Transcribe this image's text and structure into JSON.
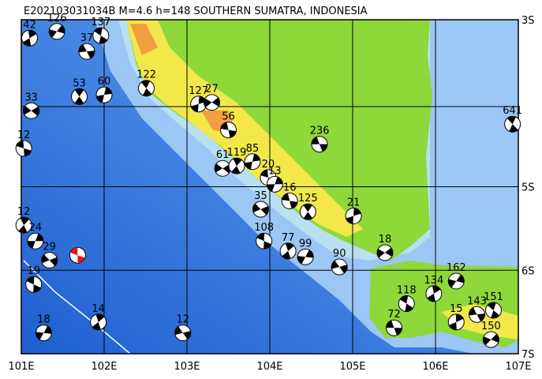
{
  "title": "E202103031034B M=4.6 h=148 SOUTHERN SUMATRA, INDONESIA",
  "xticks": [
    {
      "value": 101,
      "label": "101E"
    },
    {
      "value": 102,
      "label": "102E"
    },
    {
      "value": 103,
      "label": "103E"
    },
    {
      "value": 104,
      "label": "104E"
    },
    {
      "value": 105,
      "label": "105E"
    },
    {
      "value": 106,
      "label": "106E"
    },
    {
      "value": 107,
      "label": "107E"
    }
  ],
  "yticks": [
    {
      "value": -3,
      "label": "3S"
    },
    {
      "value": -5,
      "label": "5S"
    },
    {
      "value": -6,
      "label": "6S"
    },
    {
      "value": -7,
      "label": "7S"
    }
  ],
  "xlim": [
    101,
    107
  ],
  "ylim": [
    -7,
    -3
  ],
  "mainshock": {
    "lon": 101.68,
    "lat": -5.82,
    "color": "#e8101a"
  },
  "events": [
    {
      "lon": 104.6,
      "lat": -4.49,
      "depth": 236
    },
    {
      "lon": 106.93,
      "lat": -4.25,
      "depth": 641
    },
    {
      "lon": 105.01,
      "lat": -5.35,
      "depth": 21
    },
    {
      "lon": 105.39,
      "lat": -5.79,
      "depth": 18
    },
    {
      "lon": 104.24,
      "lat": -5.17,
      "depth": 16
    },
    {
      "lon": 104.46,
      "lat": -5.3,
      "depth": 125
    },
    {
      "lon": 103.79,
      "lat": -4.7,
      "depth": 85
    },
    {
      "lon": 103.43,
      "lat": -4.78,
      "depth": 61
    },
    {
      "lon": 103.98,
      "lat": -4.89,
      "depth": 20
    },
    {
      "lon": 103.6,
      "lat": -4.75,
      "depth": 119
    },
    {
      "lon": 104.06,
      "lat": -4.97,
      "depth": 13
    },
    {
      "lon": 103.89,
      "lat": -5.27,
      "depth": 35
    },
    {
      "lon": 103.93,
      "lat": -5.65,
      "depth": 108
    },
    {
      "lon": 104.22,
      "lat": -5.77,
      "depth": 77
    },
    {
      "lon": 104.43,
      "lat": -5.84,
      "depth": 99
    },
    {
      "lon": 104.84,
      "lat": -5.96,
      "depth": 90
    },
    {
      "lon": 105.65,
      "lat": -6.4,
      "depth": 118
    },
    {
      "lon": 105.98,
      "lat": -6.28,
      "depth": 134
    },
    {
      "lon": 106.25,
      "lat": -6.13,
      "depth": 162
    },
    {
      "lon": 106.5,
      "lat": -6.53,
      "depth": 143
    },
    {
      "lon": 106.7,
      "lat": -6.48,
      "depth": 151
    },
    {
      "lon": 106.25,
      "lat": -6.62,
      "depth": 15
    },
    {
      "lon": 106.67,
      "lat": -6.83,
      "depth": 150
    },
    {
      "lon": 105.5,
      "lat": -6.69,
      "depth": 72
    },
    {
      "lon": 102.51,
      "lat": -3.82,
      "depth": 122
    },
    {
      "lon": 103.14,
      "lat": -4.01,
      "depth": 127
    },
    {
      "lon": 103.3,
      "lat": -3.99,
      "depth": 27
    },
    {
      "lon": 103.5,
      "lat": -4.32,
      "depth": 56
    },
    {
      "lon": 101.7,
      "lat": -3.92,
      "depth": 53
    },
    {
      "lon": 102.0,
      "lat": -3.9,
      "depth": 60
    },
    {
      "lon": 101.12,
      "lat": -4.09,
      "depth": 33
    },
    {
      "lon": 101.03,
      "lat": -4.54,
      "depth": 12
    },
    {
      "lon": 101.03,
      "lat": -5.46,
      "depth": 12
    },
    {
      "lon": 101.17,
      "lat": -5.65,
      "depth": 24
    },
    {
      "lon": 101.34,
      "lat": -5.88,
      "depth": 29
    },
    {
      "lon": 101.15,
      "lat": -6.17,
      "depth": 19
    },
    {
      "lon": 101.93,
      "lat": -6.62,
      "depth": 14
    },
    {
      "lon": 101.27,
      "lat": -6.75,
      "depth": 18
    },
    {
      "lon": 102.95,
      "lat": -6.75,
      "depth": 12
    },
    {
      "lon": 101.96,
      "lat": -3.19,
      "depth": 137
    },
    {
      "lon": 101.1,
      "lat": -3.22,
      "depth": 42
    },
    {
      "lon": 101.43,
      "lat": -3.14,
      "depth": 126
    },
    {
      "lon": 101.79,
      "lat": -3.38,
      "depth": 37
    }
  ]
}
